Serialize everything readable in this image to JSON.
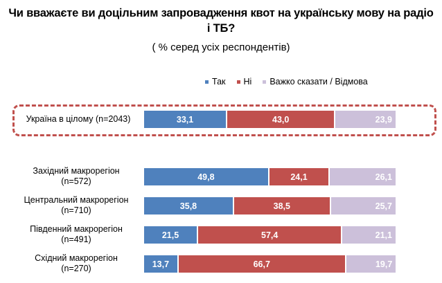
{
  "title_line1": "Чи вважаєте ви доцільним запровадження квот на українську мову на радіо",
  "title_line2": "і ТБ?",
  "subtitle": "( % серед усіх респондентів)",
  "colors": {
    "yes": "#4f81bd",
    "no": "#c0504d",
    "hard": "#ccc0da",
    "frame": "#c0504d"
  },
  "chart_data": {
    "type": "bar",
    "orientation": "horizontal",
    "stacked": true,
    "title": "Чи вважаєте ви доцільним запровадження квот на українську мову на радіо і ТБ?",
    "subtitle": "( % серед усіх респондентів)",
    "xlim": [
      0,
      100
    ],
    "legend_position": "top",
    "categories": [
      "Україна в цілому (n=2043)",
      "Західний макрорегіон (n=572)",
      "Центральний макрорегіон (n=710)",
      "Південний макрорегіон (n=491)",
      "Східний макрорегіон (n=270)"
    ],
    "category_lines": [
      [
        "Україна в цілому (n=2043)"
      ],
      [
        "Західний макрорегіон",
        "(n=572)"
      ],
      [
        "Центральний макрорегіон",
        "(n=710)"
      ],
      [
        "Південний макрорегіон",
        "(n=491)"
      ],
      [
        "Східний макрорегіон",
        "(n=270)"
      ]
    ],
    "series": [
      {
        "name": "Так",
        "values": [
          33.1,
          49.8,
          35.8,
          21.5,
          13.7
        ],
        "labels": [
          "33,1",
          "49,8",
          "35,8",
          "21,5",
          "13,7"
        ]
      },
      {
        "name": "Ні",
        "values": [
          43.0,
          24.1,
          38.5,
          57.4,
          66.7
        ],
        "labels": [
          "43,0",
          "24,1",
          "38,5",
          "57,4",
          "66,7"
        ]
      },
      {
        "name": "Важко сказати / Відмова",
        "values": [
          23.9,
          26.1,
          25.7,
          21.1,
          19.7
        ],
        "labels": [
          "23,9",
          "26,1",
          "25,7",
          "21,1",
          "19,7"
        ]
      }
    ],
    "highlighted_category": "Україна в цілому (n=2043)"
  }
}
